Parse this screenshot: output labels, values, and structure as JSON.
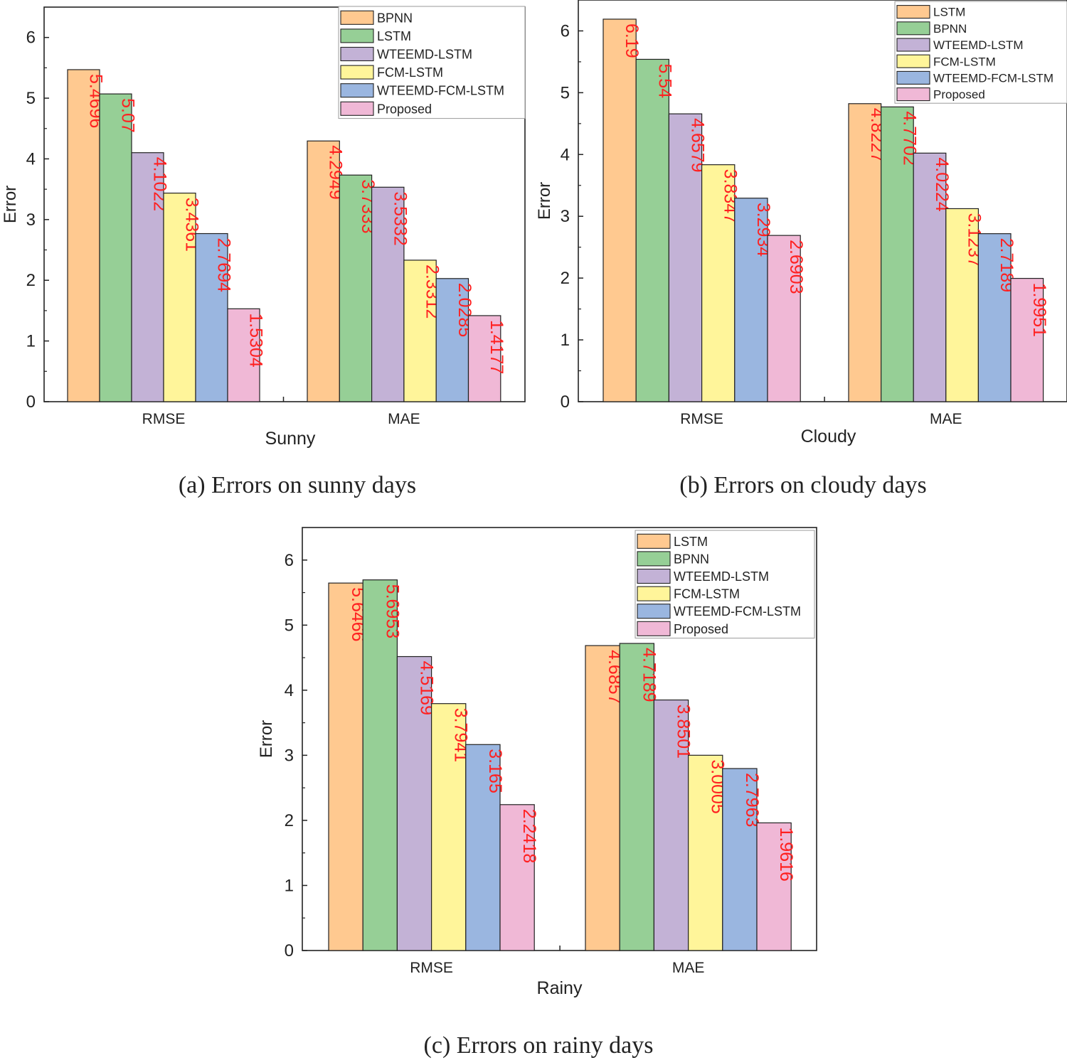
{
  "colors": {
    "series": [
      "#ffc990",
      "#96cf96",
      "#c3b2d6",
      "#fff59a",
      "#9ab6e0",
      "#f0b8d6"
    ],
    "bar_stroke": "#222222",
    "value_label": "#ff2020"
  },
  "chart_data": [
    {
      "type": "bar",
      "title": "Sunny",
      "caption": "(a)  Errors on sunny days",
      "xlabel": "Sunny",
      "ylabel": "Error",
      "ylim": [
        0,
        6.5
      ],
      "yticks": [
        "0",
        "1",
        "2",
        "3",
        "4",
        "5",
        "6"
      ],
      "categories": [
        "RMSE",
        "MAE"
      ],
      "legend_position": "top-right",
      "series": [
        {
          "name": "BPNN",
          "color_index": 0,
          "values": [
            5.4696,
            4.2949
          ],
          "labels": [
            "5.4696",
            "4.2949"
          ]
        },
        {
          "name": "LSTM",
          "color_index": 1,
          "values": [
            5.07,
            3.7333
          ],
          "labels": [
            "5.07",
            "3.7333"
          ]
        },
        {
          "name": "WTEEMD-LSTM",
          "color_index": 2,
          "values": [
            4.1022,
            3.5332
          ],
          "labels": [
            "4.1022",
            "3.5332"
          ]
        },
        {
          "name": "FCM-LSTM",
          "color_index": 3,
          "values": [
            3.4361,
            2.3312
          ],
          "labels": [
            "3.4361",
            "2.3312"
          ]
        },
        {
          "name": "WTEEMD-FCM-LSTM",
          "color_index": 4,
          "values": [
            2.7694,
            2.0285
          ],
          "labels": [
            "2.7694",
            "2.0285"
          ]
        },
        {
          "name": "Proposed",
          "color_index": 5,
          "values": [
            1.5304,
            1.4177
          ],
          "labels": [
            "1.5304",
            "1.4177"
          ]
        }
      ]
    },
    {
      "type": "bar",
      "title": "Cloudy",
      "caption": "(b) Errors on cloudy days",
      "xlabel": "Cloudy",
      "ylabel": "Error",
      "ylim": [
        0,
        6.5
      ],
      "yticks": [
        "0",
        "1",
        "2",
        "3",
        "4",
        "5",
        "6"
      ],
      "categories": [
        "RMSE",
        "MAE"
      ],
      "legend_position": "top-right",
      "series": [
        {
          "name": "LSTM",
          "color_index": 0,
          "values": [
            6.19,
            4.8227
          ],
          "labels": [
            "6.19",
            "4.8227"
          ]
        },
        {
          "name": "BPNN",
          "color_index": 1,
          "values": [
            5.54,
            4.7702
          ],
          "labels": [
            "5.54",
            "4.7702"
          ]
        },
        {
          "name": "WTEEMD-LSTM",
          "color_index": 2,
          "values": [
            4.6579,
            4.0224
          ],
          "labels": [
            "4.6579",
            "4.0224"
          ]
        },
        {
          "name": "FCM-LSTM",
          "color_index": 3,
          "values": [
            3.8347,
            3.1237
          ],
          "labels": [
            "3.8347",
            "3.1237"
          ]
        },
        {
          "name": "WTEEMD-FCM-LSTM",
          "color_index": 4,
          "values": [
            3.2934,
            2.7189
          ],
          "labels": [
            "3.2934",
            "2.7189"
          ]
        },
        {
          "name": "Proposed",
          "color_index": 5,
          "values": [
            2.6903,
            1.9951
          ],
          "labels": [
            "2.6903",
            "1.9951"
          ]
        }
      ]
    },
    {
      "type": "bar",
      "title": "Rainy",
      "caption": "(c) Errors on rainy days",
      "xlabel": "Rainy",
      "ylabel": "Error",
      "ylim": [
        0,
        6.5
      ],
      "yticks": [
        "0",
        "1",
        "2",
        "3",
        "4",
        "5",
        "6"
      ],
      "categories": [
        "RMSE",
        "MAE"
      ],
      "legend_position": "top-right",
      "series": [
        {
          "name": "LSTM",
          "color_index": 0,
          "values": [
            5.6466,
            4.6857
          ],
          "labels": [
            "5.6466",
            "4.6857"
          ]
        },
        {
          "name": "BPNN",
          "color_index": 1,
          "values": [
            5.6953,
            4.7189
          ],
          "labels": [
            "5.6953",
            "4.7189"
          ]
        },
        {
          "name": "WTEEMD-LSTM",
          "color_index": 2,
          "values": [
            4.5169,
            3.8501
          ],
          "labels": [
            "4.5169",
            "3.8501"
          ]
        },
        {
          "name": "FCM-LSTM",
          "color_index": 3,
          "values": [
            3.7941,
            3.0005
          ],
          "labels": [
            "3.7941",
            "3.0005"
          ]
        },
        {
          "name": "WTEEMD-FCM-LSTM",
          "color_index": 4,
          "values": [
            3.165,
            2.7963
          ],
          "labels": [
            "3.165",
            "2.7963"
          ]
        },
        {
          "name": "Proposed",
          "color_index": 5,
          "values": [
            2.2418,
            1.9616
          ],
          "labels": [
            "2.2418",
            "1.9616"
          ]
        }
      ]
    }
  ]
}
